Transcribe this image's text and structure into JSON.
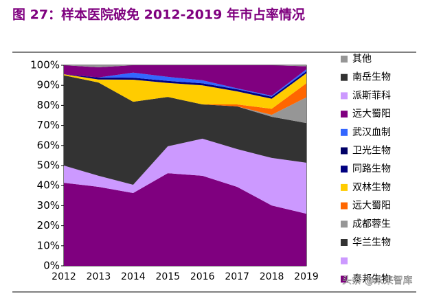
{
  "chart_data": {
    "type": "stacked_area",
    "title": "图 27：样本医院破免 2012-2019 年市占率情况",
    "categories": [
      "2012",
      "2013",
      "2014",
      "2015",
      "2016",
      "2017",
      "2018",
      "2019"
    ],
    "ylim": [
      0,
      100
    ],
    "yticks": [
      {
        "value": 0,
        "label": "0%"
      },
      {
        "value": 10,
        "label": "10%"
      },
      {
        "value": 20,
        "label": "20%"
      },
      {
        "value": 30,
        "label": "30%"
      },
      {
        "value": 40,
        "label": "40%"
      },
      {
        "value": 50,
        "label": "50%"
      },
      {
        "value": 60,
        "label": "60%"
      },
      {
        "value": 70,
        "label": "70%"
      },
      {
        "value": 80,
        "label": "80%"
      },
      {
        "value": 90,
        "label": "90%"
      },
      {
        "value": 100,
        "label": "100%"
      }
    ],
    "series": [
      {
        "name": "泰邦生物",
        "color": "#7f007f",
        "values": [
          41.4,
          39.4,
          36.3,
          46.2,
          44.9,
          39.4,
          30.1,
          26.0
        ]
      },
      {
        "name": null,
        "color": "#cc99ff",
        "values": [
          8.6,
          5.5,
          4.1,
          13.4,
          18.5,
          18.8,
          23.7,
          25.4
        ]
      },
      {
        "name": "华兰生物",
        "color": "#333333",
        "values": [
          45,
          46.5,
          41.4,
          24.6,
          17.1,
          21.3,
          20.5,
          19.8
        ]
      },
      {
        "name": "成都蓉生",
        "color": "#969696",
        "values": [
          0,
          0,
          0,
          0,
          0,
          0,
          1,
          12.8
        ]
      },
      {
        "name": "远大蜀阳",
        "color": "#ff6600",
        "values": [
          0,
          0,
          0,
          0,
          0,
          1,
          3,
          7
        ]
      },
      {
        "name": "双林生物",
        "color": "#ffcc00",
        "values": [
          0.5,
          1.5,
          11,
          7,
          9.5,
          6.5,
          5,
          5
        ]
      },
      {
        "name": "同路生物",
        "color": "#000080",
        "values": [
          0,
          1,
          1,
          1,
          1,
          1,
          1,
          1
        ]
      },
      {
        "name": "卫光生物",
        "color": "#000066",
        "values": [
          0,
          0,
          0,
          0,
          0,
          0,
          0,
          0
        ]
      },
      {
        "name": "武汉血制",
        "color": "#3366ff",
        "values": [
          0,
          0,
          2.5,
          2,
          1.5,
          0.5,
          0.5,
          1
        ]
      },
      {
        "name": "远大蜀阳",
        "color": "#800080",
        "values": [
          4.5,
          5.1,
          3.7,
          5.8,
          7.5,
          11.5,
          15.2,
          1.5
        ]
      },
      {
        "name": "派斯菲科",
        "color": "#cc99ff",
        "values": [
          0,
          0,
          0,
          0,
          0,
          0,
          0,
          0
        ]
      },
      {
        "name": "南岳生物",
        "color": "#333333",
        "values": [
          0,
          0,
          0,
          0,
          0,
          0,
          0,
          0
        ]
      },
      {
        "name": "其他",
        "color": "#969696",
        "values": [
          0,
          1,
          0,
          0,
          0,
          0,
          0,
          0.5
        ]
      }
    ],
    "watermark": "头条 @未来智库"
  }
}
